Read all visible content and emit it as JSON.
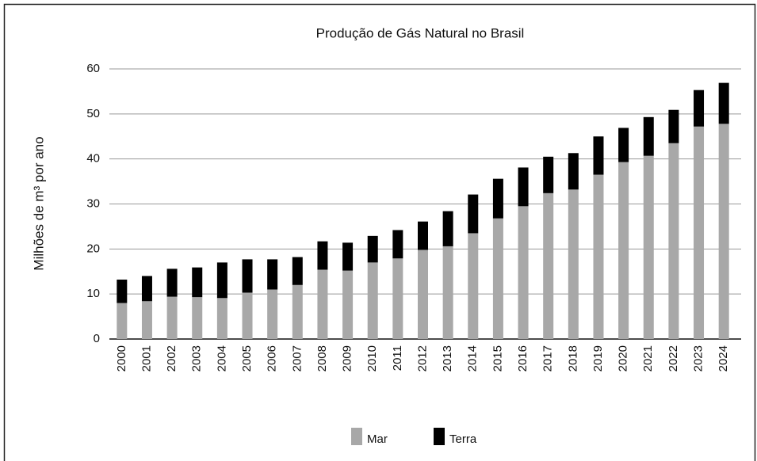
{
  "chart_data": {
    "type": "stacked_bar",
    "title": "Produção de Gás Natural no Brasil",
    "y_label": "Milhões de m³ por ano",
    "categories": [
      "2000",
      "2001",
      "2002",
      "2003",
      "2004",
      "2005",
      "2006",
      "2007",
      "2008",
      "2009",
      "2010",
      "2011",
      "2012",
      "2013",
      "2014",
      "2015",
      "2016",
      "2017",
      "2018",
      "2019",
      "2020",
      "2021",
      "2022",
      "2023",
      "2024"
    ],
    "series": [
      {
        "name": "Mar",
        "color": "#a8a8a8",
        "values": [
          8,
          8.4,
          9.4,
          9.3,
          9.1,
          10.3,
          11,
          12,
          15.4,
          15.2,
          17,
          17.9,
          19.8,
          20.6,
          23.5,
          26.8,
          29.5,
          32.4,
          33.2,
          36.5,
          39.3,
          40.7,
          43.5,
          47.2,
          47.8
        ]
      },
      {
        "name": "Terra",
        "color": "#000000",
        "values": [
          5.2,
          5.6,
          6.2,
          6.6,
          7.9,
          7.4,
          6.7,
          6.2,
          6.3,
          6.2,
          5.9,
          6.3,
          6.3,
          7.8,
          8.6,
          8.8,
          8.6,
          8.1,
          8.1,
          8.5,
          7.6,
          8.6,
          7.4,
          8.1,
          9.1
        ]
      }
    ],
    "ylim": [
      0,
      60
    ],
    "yticks": [
      0,
      10,
      20,
      30,
      40,
      50,
      60
    ],
    "grid": true,
    "legend": "bottom"
  }
}
